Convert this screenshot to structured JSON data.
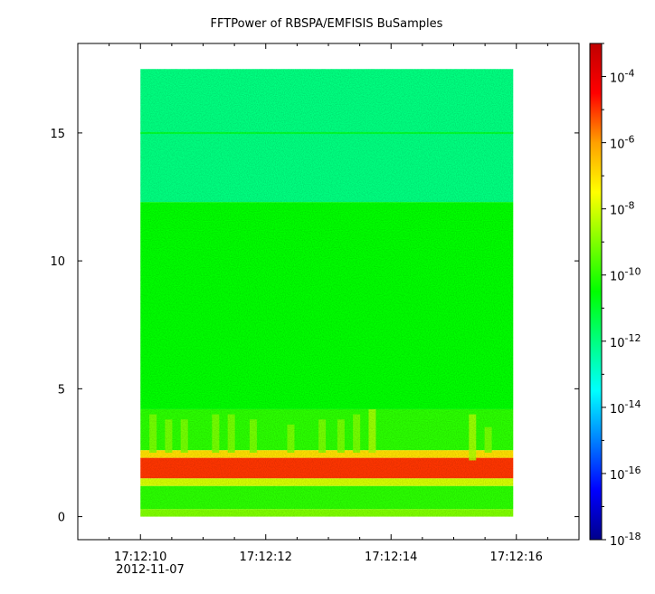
{
  "chart_data": {
    "type": "heatmap",
    "title": "FFTPower of RBSPA/EMFISIS  BuSamples",
    "xlabel": "",
    "ylabel": "",
    "x_tick_labels": [
      "17:12:10",
      "17:12:12",
      "17:12:14",
      "17:12:16"
    ],
    "x_tick_seconds": [
      10,
      12,
      14,
      16
    ],
    "x_date_label": "2012-11-07",
    "xlim_seconds": [
      9.0,
      17.0
    ],
    "data_time_range_seconds": [
      10.0,
      15.95
    ],
    "y_ticks": [
      0,
      5,
      10,
      15
    ],
    "ylim": [
      -0.9,
      18.5
    ],
    "data_freq_range": [
      0,
      17.5
    ],
    "colorbar": {
      "scale": "log",
      "range": [
        1e-18,
        0.001
      ],
      "tick_exponents": [
        -4,
        -6,
        -8,
        -10,
        -12,
        -14,
        -16,
        -18
      ],
      "tick_base": "10",
      "colors": [
        "#00008b",
        "#0000ff",
        "#0080ff",
        "#00ffff",
        "#00ff80",
        "#00ff00",
        "#80ff00",
        "#ffff00",
        "#ffa000",
        "#ff0000",
        "#c00000"
      ]
    },
    "bands": [
      {
        "freq_range": [
          0,
          0.3
        ],
        "log_power": -9
      },
      {
        "freq_range": [
          0.3,
          1.2
        ],
        "log_power": -10
      },
      {
        "freq_range": [
          1.2,
          1.5
        ],
        "log_power": -8
      },
      {
        "freq_range": [
          1.5,
          2.3
        ],
        "log_power": -5
      },
      {
        "freq_range": [
          2.3,
          2.6
        ],
        "log_power": -7
      },
      {
        "freq_range": [
          2.6,
          4.2
        ],
        "log_power": -10
      },
      {
        "freq_range": [
          4.2,
          12.3
        ],
        "log_power": -10.5
      },
      {
        "freq_range": [
          12.3,
          17.5
        ],
        "log_power": -12
      }
    ],
    "line_features": [
      {
        "freq": 15.0,
        "log_power": -11
      }
    ],
    "bursts": [
      {
        "time_seconds": 10.2,
        "freq_range": [
          2.5,
          4.0
        ],
        "log_power": -9
      },
      {
        "time_seconds": 10.45,
        "freq_range": [
          2.5,
          3.8
        ],
        "log_power": -9
      },
      {
        "time_seconds": 10.7,
        "freq_range": [
          2.5,
          3.8
        ],
        "log_power": -9
      },
      {
        "time_seconds": 11.2,
        "freq_range": [
          2.5,
          4.0
        ],
        "log_power": -9
      },
      {
        "time_seconds": 11.45,
        "freq_range": [
          2.5,
          4.0
        ],
        "log_power": -9
      },
      {
        "time_seconds": 11.8,
        "freq_range": [
          2.5,
          3.8
        ],
        "log_power": -9
      },
      {
        "time_seconds": 12.4,
        "freq_range": [
          2.5,
          3.6
        ],
        "log_power": -9
      },
      {
        "time_seconds": 12.9,
        "freq_range": [
          2.5,
          3.8
        ],
        "log_power": -9
      },
      {
        "time_seconds": 13.2,
        "freq_range": [
          2.5,
          3.8
        ],
        "log_power": -9
      },
      {
        "time_seconds": 13.45,
        "freq_range": [
          2.5,
          4.0
        ],
        "log_power": -9
      },
      {
        "time_seconds": 13.7,
        "freq_range": [
          2.5,
          4.2
        ],
        "log_power": -8.5
      },
      {
        "time_seconds": 15.3,
        "freq_range": [
          2.2,
          4.0
        ],
        "log_power": -8.5
      },
      {
        "time_seconds": 15.55,
        "freq_range": [
          2.5,
          3.5
        ],
        "log_power": -9
      }
    ]
  }
}
